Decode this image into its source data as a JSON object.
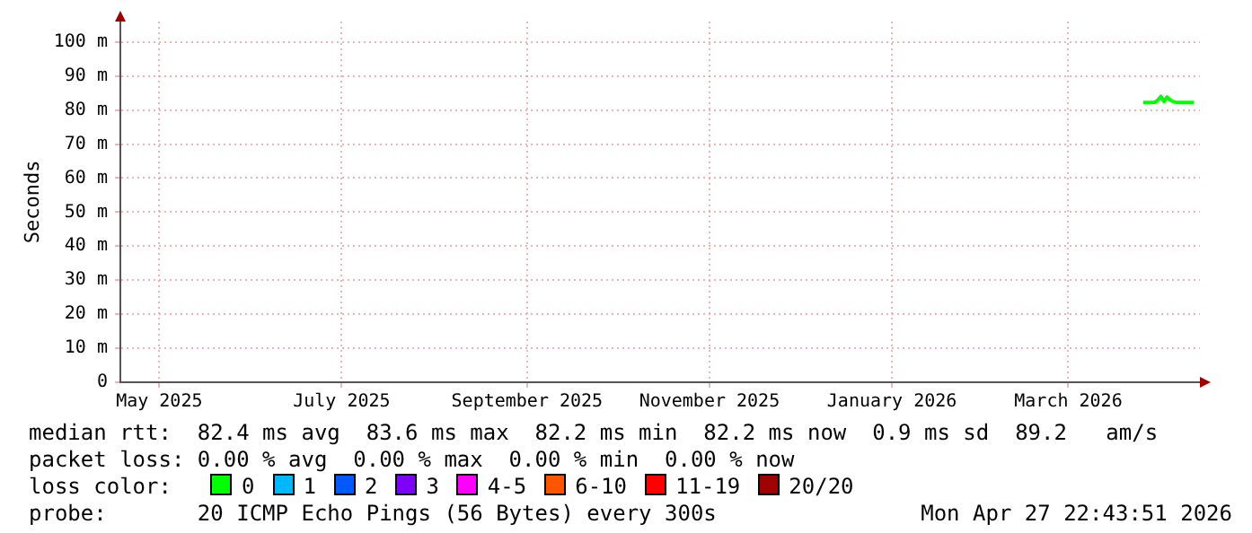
{
  "chart_data": {
    "type": "line",
    "ylabel": "Seconds",
    "legend_title": "loss color:",
    "legend": "bottom",
    "x": [
      "2026-03-26",
      "2026-03-28",
      "2026-03-30",
      "2026-03-31",
      "2026-04-01",
      "2026-04-02",
      "2026-04-03",
      "2026-04-04",
      "2026-04-05",
      "2026-04-06",
      "2026-04-08",
      "2026-04-10",
      "2026-04-12"
    ],
    "series": [
      {
        "name": "0",
        "color": "#00ff00",
        "values": [
          82.2,
          82.2,
          82.3,
          83.0,
          84.0,
          82.5,
          83.8,
          83.0,
          82.5,
          82.3,
          82.2,
          82.2,
          82.2
        ]
      },
      {
        "name": "1",
        "color": "#00b8ff",
        "values": [
          null,
          null,
          null,
          null,
          null,
          null,
          null,
          null,
          null,
          null,
          null,
          null,
          null
        ]
      },
      {
        "name": "2",
        "color": "#0059ff",
        "values": [
          null,
          null,
          null,
          null,
          null,
          null,
          null,
          null,
          null,
          null,
          null,
          null,
          null
        ]
      },
      {
        "name": "3",
        "color": "#7e00ff",
        "values": [
          null,
          null,
          null,
          null,
          null,
          null,
          null,
          null,
          null,
          null,
          null,
          null,
          null
        ]
      },
      {
        "name": "4-5",
        "color": "#ff00ff",
        "values": [
          null,
          null,
          null,
          null,
          null,
          null,
          null,
          null,
          null,
          null,
          null,
          null,
          null
        ]
      },
      {
        "name": "6-10",
        "color": "#ff5500",
        "values": [
          null,
          null,
          null,
          null,
          null,
          null,
          null,
          null,
          null,
          null,
          null,
          null,
          null
        ]
      },
      {
        "name": "11-19",
        "color": "#ff0000",
        "values": [
          null,
          null,
          null,
          null,
          null,
          null,
          null,
          null,
          null,
          null,
          null,
          null,
          null
        ]
      },
      {
        "name": "20/20",
        "color": "#a10000",
        "values": [
          null,
          null,
          null,
          null,
          null,
          null,
          null,
          null,
          null,
          null,
          null,
          null,
          null
        ]
      }
    ],
    "xlim": [
      "2025-04-18",
      "2026-04-14"
    ],
    "xticks": [
      {
        "value": "2025-05-01",
        "label": "May 2025"
      },
      {
        "value": "2025-07-01",
        "label": "July 2025"
      },
      {
        "value": "2025-09-01",
        "label": "September 2025"
      },
      {
        "value": "2025-11-01",
        "label": "November 2025"
      },
      {
        "value": "2026-01-01",
        "label": "January 2026"
      },
      {
        "value": "2026-03-01",
        "label": "March 2026"
      }
    ],
    "ylim": [
      0,
      106
    ],
    "yticks": [
      0,
      {
        "value": 10,
        "label": "10 m"
      },
      {
        "value": 20,
        "label": "20 m"
      },
      {
        "value": 30,
        "label": "30 m"
      },
      {
        "value": 40,
        "label": "40 m"
      },
      {
        "value": 50,
        "label": "50 m"
      },
      {
        "value": 60,
        "label": "60 m"
      },
      {
        "value": 70,
        "label": "70 m"
      },
      {
        "value": 80,
        "label": "80 m"
      },
      {
        "value": 90,
        "label": "90 m"
      },
      {
        "value": 100,
        "label": "100 m"
      }
    ],
    "grid": true,
    "marker": "none",
    "line_style": "solid",
    "annotations": [
      "median rtt:  82.4 ms avg  83.6 ms max  82.2 ms min  82.2 ms now  0.9 ms sd  89.2   am/s",
      "packet loss: 0.00 % avg  0.00 % max  0.00 % min  0.00 % now",
      "probe:       20 ICMP Echo Pings (56 Bytes) every 300s",
      "Mon Apr 27 22:43:51 2026"
    ]
  }
}
